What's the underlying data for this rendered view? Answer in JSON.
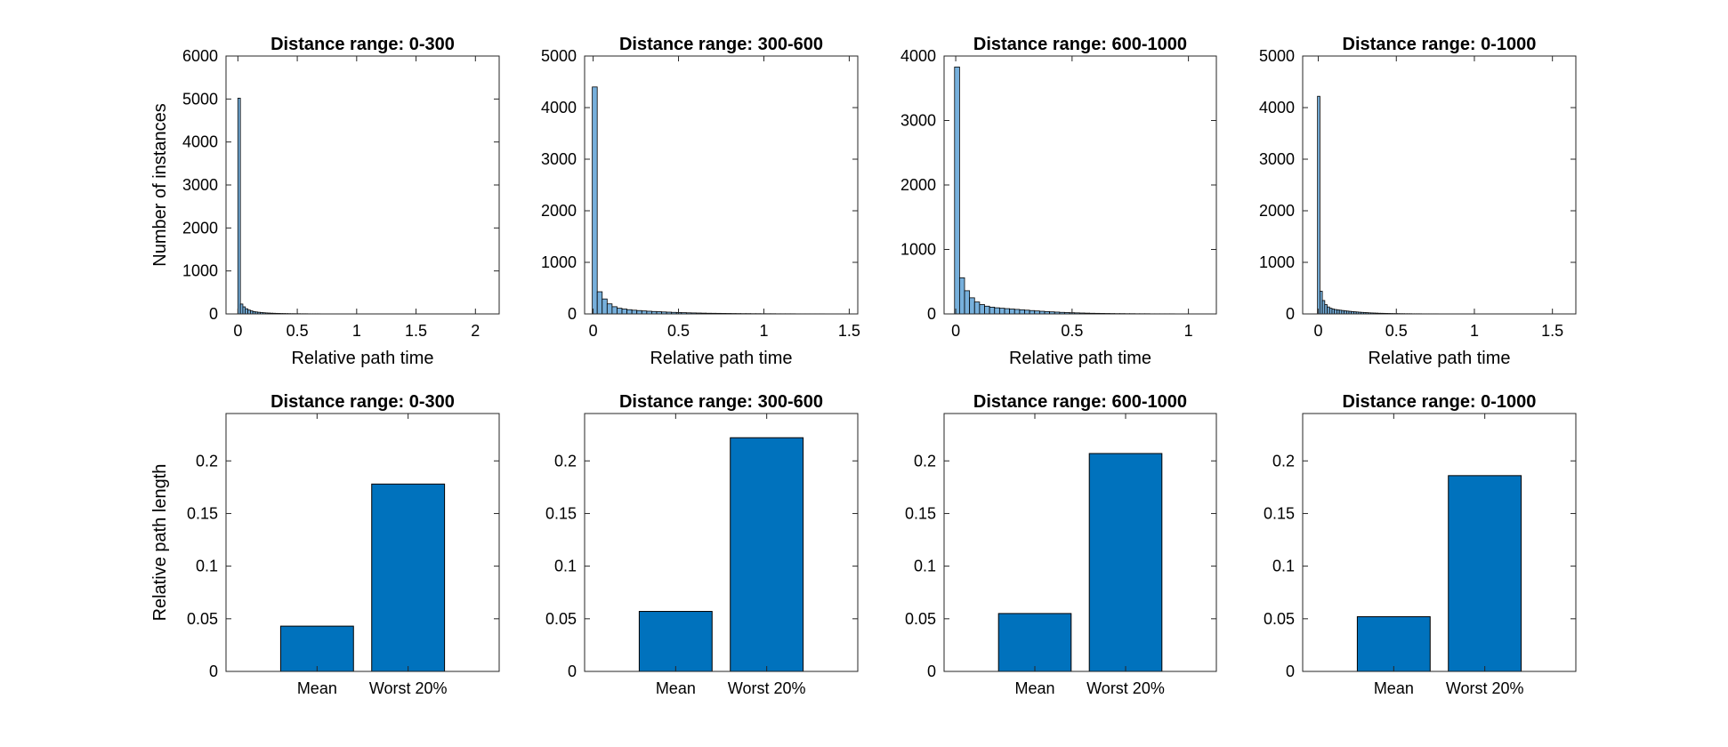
{
  "colors": {
    "hist_fill": "#77b0dc",
    "bar_fill": "#0072bd",
    "edge": "#000000",
    "axes_bg": "#ffffff"
  },
  "chart_data": [
    {
      "type": "bar",
      "subtype": "histogram",
      "title": "Distance range: 0-300",
      "xlabel": "Relative path time",
      "ylabel": "Number of instances",
      "xlim": [
        -0.1,
        2.2
      ],
      "ylim": [
        0,
        6000
      ],
      "xticks": [
        0,
        0.5,
        1,
        1.5,
        2
      ],
      "xtick_labels": [
        "0",
        "0.5",
        "1",
        "1.5",
        "2"
      ],
      "yticks": [
        0,
        1000,
        2000,
        3000,
        4000,
        5000,
        6000
      ],
      "ytick_labels": [
        "0",
        "1000",
        "2000",
        "3000",
        "4000",
        "5000",
        "6000"
      ],
      "bin_width": 0.021,
      "bin_start": 0,
      "values": [
        5020,
        230,
        165,
        120,
        90,
        70,
        55,
        45,
        38,
        32,
        27,
        23,
        20,
        17,
        15,
        13,
        12,
        10,
        9,
        8,
        7,
        6,
        6,
        5,
        5,
        4,
        4,
        4,
        3,
        3,
        3,
        3,
        3,
        2,
        2,
        2,
        2,
        2,
        2,
        2,
        2,
        2,
        2,
        1,
        1,
        1,
        1,
        1,
        1,
        1,
        1,
        1,
        1,
        1,
        1,
        1,
        1,
        1,
        1,
        1
      ],
      "grid": false
    },
    {
      "type": "bar",
      "subtype": "histogram",
      "title": "Distance range: 300-600",
      "xlabel": "Relative path time",
      "ylabel": "",
      "xlim": [
        -0.05,
        1.55
      ],
      "ylim": [
        0,
        5000
      ],
      "xticks": [
        0,
        0.5,
        1,
        1.5
      ],
      "xtick_labels": [
        "0",
        "0.5",
        "1",
        "1.5"
      ],
      "yticks": [
        0,
        1000,
        2000,
        3000,
        4000,
        5000
      ],
      "ytick_labels": [
        "0",
        "1000",
        "2000",
        "3000",
        "4000",
        "5000"
      ],
      "bin_width": 0.029,
      "bin_start": -0.005,
      "values": [
        4400,
        430,
        290,
        195,
        140,
        110,
        95,
        82,
        72,
        65,
        58,
        52,
        47,
        43,
        38,
        34,
        30,
        27,
        24,
        21,
        19,
        17,
        15,
        13,
        12,
        11,
        10,
        9,
        8,
        7,
        6,
        6,
        5,
        5,
        4,
        4,
        4,
        3,
        3,
        3,
        3,
        2,
        2,
        2,
        2,
        2,
        2,
        1,
        1,
        1
      ],
      "grid": false
    },
    {
      "type": "bar",
      "subtype": "histogram",
      "title": "Distance range: 600-1000",
      "xlabel": "Relative path time",
      "ylabel": "",
      "xlim": [
        -0.05,
        1.12
      ],
      "ylim": [
        0,
        4000
      ],
      "xticks": [
        0,
        0.5,
        1
      ],
      "xtick_labels": [
        "0",
        "0.5",
        "1"
      ],
      "yticks": [
        0,
        1000,
        2000,
        3000,
        4000
      ],
      "ytick_labels": [
        "0",
        "1000",
        "2000",
        "3000",
        "4000"
      ],
      "bin_width": 0.0215,
      "bin_start": -0.005,
      "values": [
        3830,
        560,
        360,
        250,
        185,
        145,
        120,
        105,
        95,
        88,
        82,
        76,
        70,
        64,
        58,
        52,
        46,
        41,
        36,
        32,
        28,
        24,
        21,
        18,
        16,
        14,
        12,
        10,
        9,
        8,
        7,
        6,
        5,
        5,
        4,
        4,
        3,
        3,
        3,
        2,
        2,
        2,
        2,
        2,
        1,
        1,
        1,
        1,
        1,
        1
      ],
      "grid": false
    },
    {
      "type": "bar",
      "subtype": "histogram",
      "title": "Distance range: 0-1000",
      "xlabel": "Relative path time",
      "ylabel": "",
      "xlim": [
        -0.1,
        1.65
      ],
      "ylim": [
        0,
        5000
      ],
      "xticks": [
        0,
        0.5,
        1,
        1.5
      ],
      "xtick_labels": [
        "0",
        "0.5",
        "1",
        "1.5"
      ],
      "yticks": [
        0,
        1000,
        2000,
        3000,
        4000,
        5000
      ],
      "ytick_labels": [
        "0",
        "1000",
        "2000",
        "3000",
        "4000",
        "5000"
      ],
      "bin_width": 0.0155,
      "bin_start": -0.005,
      "values": [
        4220,
        440,
        260,
        180,
        135,
        110,
        95,
        85,
        78,
        72,
        66,
        60,
        55,
        50,
        45,
        41,
        37,
        33,
        30,
        27,
        24,
        21,
        19,
        17,
        15,
        13,
        12,
        11,
        10,
        9,
        8,
        7,
        6,
        6,
        5,
        5,
        4,
        4,
        4,
        3,
        3,
        3,
        3,
        2,
        2,
        2,
        2,
        2,
        2,
        2,
        1,
        1,
        1,
        1,
        1,
        1,
        1,
        1,
        1,
        1,
        1,
        1,
        1,
        1,
        1,
        1,
        1,
        1,
        1,
        1
      ],
      "grid": false
    },
    {
      "type": "bar",
      "title": "Distance range: 0-300",
      "xlabel": "",
      "ylabel": "Relative path length",
      "categories": [
        "Mean",
        "Worst 20%"
      ],
      "values": [
        0.043,
        0.178
      ],
      "xlim": [
        0,
        3
      ],
      "ylim": [
        0,
        0.245
      ],
      "yticks": [
        0,
        0.05,
        0.1,
        0.15,
        0.2
      ],
      "ytick_labels": [
        "0",
        "0.05",
        "0.1",
        "0.15",
        "0.2"
      ],
      "grid": false
    },
    {
      "type": "bar",
      "title": "Distance range: 300-600",
      "xlabel": "",
      "ylabel": "",
      "categories": [
        "Mean",
        "Worst 20%"
      ],
      "values": [
        0.057,
        0.222
      ],
      "xlim": [
        0,
        3
      ],
      "ylim": [
        0,
        0.245
      ],
      "yticks": [
        0,
        0.05,
        0.1,
        0.15,
        0.2
      ],
      "ytick_labels": [
        "0",
        "0.05",
        "0.1",
        "0.15",
        "0.2"
      ],
      "grid": false
    },
    {
      "type": "bar",
      "title": "Distance range: 600-1000",
      "xlabel": "",
      "ylabel": "",
      "categories": [
        "Mean",
        "Worst 20%"
      ],
      "values": [
        0.055,
        0.207
      ],
      "xlim": [
        0,
        3
      ],
      "ylim": [
        0,
        0.245
      ],
      "yticks": [
        0,
        0.05,
        0.1,
        0.15,
        0.2
      ],
      "ytick_labels": [
        "0",
        "0.05",
        "0.1",
        "0.15",
        "0.2"
      ],
      "grid": false
    },
    {
      "type": "bar",
      "title": "Distance range: 0-1000",
      "xlabel": "",
      "ylabel": "",
      "categories": [
        "Mean",
        "Worst 20%"
      ],
      "values": [
        0.052,
        0.186
      ],
      "xlim": [
        0,
        3
      ],
      "ylim": [
        0,
        0.245
      ],
      "yticks": [
        0,
        0.05,
        0.1,
        0.15,
        0.2
      ],
      "ytick_labels": [
        "0",
        "0.05",
        "0.1",
        "0.15",
        "0.2"
      ],
      "grid": false
    }
  ]
}
